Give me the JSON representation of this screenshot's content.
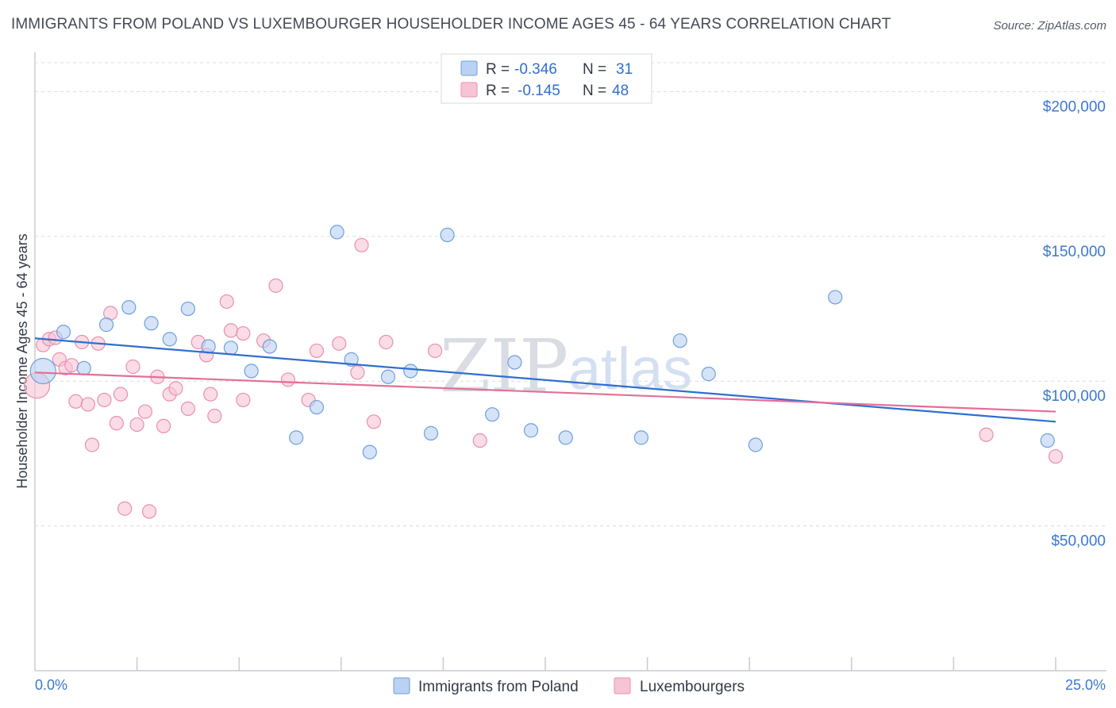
{
  "title": "IMMIGRANTS FROM POLAND VS LUXEMBOURGER HOUSEHOLDER INCOME AGES 45 - 64 YEARS CORRELATION CHART",
  "source": "Source: ZipAtlas.com",
  "watermark": {
    "zip": "ZIP",
    "atlas": "atlas"
  },
  "colors": {
    "blue_fill": "#b9d1f3",
    "blue_stroke": "#6f9fdd",
    "blue_line": "#2f6fcf",
    "pink_fill": "#f7c4d5",
    "pink_stroke": "#ea8fac",
    "pink_line": "#e66d98",
    "grid": "#d9dce2",
    "axis_text": "#3b78d0"
  },
  "legend": {
    "rows": [
      {
        "r_label": "R =",
        "r_value": "-0.346",
        "n_label": "N =",
        "n_value": "31"
      },
      {
        "r_label": "R =",
        "r_value": "-0.145",
        "n_label": "N =",
        "n_value": "48"
      }
    ]
  },
  "chart_data": {
    "type": "scatter",
    "xlabel": "",
    "ylabel": "Householder Income Ages 45 - 64 years",
    "xlim": [
      0,
      25
    ],
    "ylim": [
      0,
      210000
    ],
    "x_tick_labels": {
      "left": "0.0%",
      "right": "25.0%"
    },
    "y_ticks": [
      {
        "value": 50000,
        "label": "$50,000"
      },
      {
        "value": 100000,
        "label": "$100,000"
      },
      {
        "value": 150000,
        "label": "$150,000"
      },
      {
        "value": 200000,
        "label": "$200,000"
      }
    ],
    "series": [
      {
        "name": "Immigrants from Poland",
        "color": "blue",
        "R": -0.346,
        "N": 31,
        "trend": {
          "x0": 0,
          "y0": 114800,
          "x1": 25,
          "y1": 86000
        },
        "points": [
          {
            "x": 0.2,
            "y": 103500,
            "big": true
          },
          {
            "x": 0.7,
            "y": 117000
          },
          {
            "x": 1.2,
            "y": 104500
          },
          {
            "x": 1.75,
            "y": 119500
          },
          {
            "x": 2.3,
            "y": 125500
          },
          {
            "x": 2.85,
            "y": 120000
          },
          {
            "x": 3.3,
            "y": 114500
          },
          {
            "x": 3.75,
            "y": 125000
          },
          {
            "x": 4.25,
            "y": 112000
          },
          {
            "x": 4.8,
            "y": 111500
          },
          {
            "x": 5.3,
            "y": 103500
          },
          {
            "x": 5.75,
            "y": 112000
          },
          {
            "x": 6.4,
            "y": 80500
          },
          {
            "x": 6.9,
            "y": 91000
          },
          {
            "x": 7.4,
            "y": 151500
          },
          {
            "x": 7.75,
            "y": 107500
          },
          {
            "x": 8.2,
            "y": 75500
          },
          {
            "x": 8.65,
            "y": 101500
          },
          {
            "x": 9.2,
            "y": 103500
          },
          {
            "x": 9.7,
            "y": 82000
          },
          {
            "x": 10.1,
            "y": 150500
          },
          {
            "x": 11.2,
            "y": 88500
          },
          {
            "x": 11.75,
            "y": 106500
          },
          {
            "x": 12.15,
            "y": 83000
          },
          {
            "x": 13.0,
            "y": 80500
          },
          {
            "x": 14.85,
            "y": 80500
          },
          {
            "x": 15.8,
            "y": 114000
          },
          {
            "x": 16.5,
            "y": 102500
          },
          {
            "x": 17.65,
            "y": 78000
          },
          {
            "x": 19.6,
            "y": 129000
          },
          {
            "x": 24.8,
            "y": 79500
          }
        ]
      },
      {
        "name": "Luxembourgers",
        "color": "pink",
        "R": -0.145,
        "N": 48,
        "trend": {
          "x0": 0,
          "y0": 103000,
          "x1": 25,
          "y1": 89500
        },
        "points": [
          {
            "x": 0.05,
            "y": 98500,
            "big": true
          },
          {
            "x": 0.2,
            "y": 112500
          },
          {
            "x": 0.35,
            "y": 114500
          },
          {
            "x": 0.5,
            "y": 115000
          },
          {
            "x": 0.6,
            "y": 107500
          },
          {
            "x": 0.75,
            "y": 104500
          },
          {
            "x": 0.9,
            "y": 105500
          },
          {
            "x": 1.0,
            "y": 93000
          },
          {
            "x": 1.15,
            "y": 113500
          },
          {
            "x": 1.3,
            "y": 92000
          },
          {
            "x": 1.4,
            "y": 78000
          },
          {
            "x": 1.55,
            "y": 113000
          },
          {
            "x": 1.7,
            "y": 93500
          },
          {
            "x": 1.85,
            "y": 123500
          },
          {
            "x": 2.0,
            "y": 85500
          },
          {
            "x": 2.1,
            "y": 95500
          },
          {
            "x": 2.2,
            "y": 56000
          },
          {
            "x": 2.4,
            "y": 105000
          },
          {
            "x": 2.5,
            "y": 85000
          },
          {
            "x": 2.7,
            "y": 89500
          },
          {
            "x": 2.8,
            "y": 55000
          },
          {
            "x": 3.0,
            "y": 101500
          },
          {
            "x": 3.15,
            "y": 84500
          },
          {
            "x": 3.3,
            "y": 95500
          },
          {
            "x": 3.45,
            "y": 97500
          },
          {
            "x": 3.75,
            "y": 90500
          },
          {
            "x": 4.0,
            "y": 113500
          },
          {
            "x": 4.2,
            "y": 109000
          },
          {
            "x": 4.3,
            "y": 95500
          },
          {
            "x": 4.4,
            "y": 88000
          },
          {
            "x": 4.7,
            "y": 127500
          },
          {
            "x": 4.8,
            "y": 117500
          },
          {
            "x": 5.1,
            "y": 116500
          },
          {
            "x": 5.1,
            "y": 93500
          },
          {
            "x": 5.6,
            "y": 114000
          },
          {
            "x": 5.9,
            "y": 133000
          },
          {
            "x": 6.2,
            "y": 100500
          },
          {
            "x": 6.7,
            "y": 93500
          },
          {
            "x": 6.9,
            "y": 110500
          },
          {
            "x": 7.45,
            "y": 113000
          },
          {
            "x": 7.9,
            "y": 103000
          },
          {
            "x": 8.0,
            "y": 147000
          },
          {
            "x": 8.3,
            "y": 86000
          },
          {
            "x": 8.6,
            "y": 113500
          },
          {
            "x": 9.8,
            "y": 110500
          },
          {
            "x": 10.9,
            "y": 79500
          },
          {
            "x": 23.3,
            "y": 81500
          },
          {
            "x": 25.0,
            "y": 74000
          }
        ]
      }
    ]
  }
}
